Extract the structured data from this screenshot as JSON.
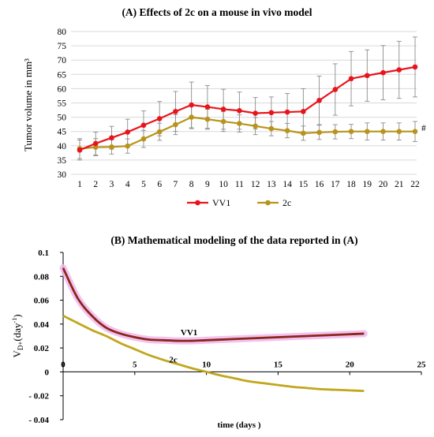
{
  "chart_data": [
    {
      "type": "line",
      "title": "(A) Effects of 2c on a mouse in vivo model",
      "ylabel": "Tumor volume in mm³",
      "xlabel": "",
      "x": [
        1,
        2,
        3,
        4,
        5,
        6,
        7,
        8,
        9,
        10,
        11,
        12,
        13,
        14,
        15,
        16,
        17,
        18,
        19,
        20,
        21,
        22
      ],
      "ylim": [
        30,
        80
      ],
      "yticks": [
        30,
        35,
        40,
        45,
        50,
        55,
        60,
        65,
        70,
        75,
        80
      ],
      "grid": "horizontal",
      "legend_position": "bottom",
      "annotation": "#",
      "series": [
        {
          "name": "VV1",
          "color": "#e8141c",
          "values": [
            38.5,
            40.8,
            42.8,
            44.8,
            47.2,
            49.5,
            52.0,
            54.3,
            53.6,
            52.8,
            52.3,
            51.4,
            51.6,
            51.8,
            52.0,
            55.9,
            59.7,
            63.5,
            64.6,
            65.6,
            66.6,
            67.6
          ],
          "error": [
            3.5,
            4.0,
            4.0,
            4.5,
            5.0,
            6.0,
            7.0,
            8.0,
            7.5,
            7.0,
            6.5,
            5.5,
            5.5,
            6.5,
            8.0,
            8.5,
            9.0,
            9.5,
            9.0,
            9.5,
            10.0,
            10.5
          ]
        },
        {
          "name": "2c",
          "color": "#b8941c",
          "values": [
            39.0,
            39.5,
            39.6,
            39.9,
            42.4,
            44.9,
            47.4,
            50.0,
            49.3,
            48.5,
            47.8,
            46.9,
            46.0,
            45.3,
            44.4,
            44.7,
            44.9,
            45.0,
            45.0,
            45.0,
            45.0,
            45.0
          ],
          "error": [
            3.5,
            3.0,
            2.5,
            2.5,
            3.0,
            3.0,
            3.5,
            4.0,
            3.5,
            3.5,
            3.0,
            3.0,
            2.5,
            2.5,
            2.5,
            2.5,
            2.5,
            2.5,
            3.0,
            3.0,
            3.0,
            3.5
          ]
        }
      ]
    },
    {
      "type": "line",
      "title": "(B) Mathematical modeling of the data  reported in (A)",
      "xlabel": "time (days )",
      "ylabel": "V",
      "ylabel_sub": "D+",
      "ylabel_rest": "(day",
      "ylabel_sup": "-1",
      "ylabel_end": ")",
      "xlim": [
        0,
        25
      ],
      "ylim": [
        -0.04,
        0.1
      ],
      "xticks": [
        0,
        5,
        10,
        15,
        20,
        25
      ],
      "yticks": [
        -0.04,
        -0.02,
        0,
        0.02,
        0.04,
        0.06,
        0.08,
        0.1
      ],
      "ytick_labels": [
        "- 0.04",
        "- 0.02",
        "0",
        "0.02",
        "0.04",
        "0.06",
        "0.08",
        "0.1"
      ],
      "grid": "none",
      "series": [
        {
          "name": "VV1",
          "color": "#8b2618",
          "band_color": "#f0b8ee",
          "x": [
            0,
            1,
            2,
            3,
            4,
            5,
            6,
            7,
            8,
            9,
            10,
            11,
            12,
            13,
            14,
            15,
            16,
            17,
            18,
            19,
            20,
            21
          ],
          "y": [
            0.087,
            0.062,
            0.047,
            0.037,
            0.032,
            0.029,
            0.027,
            0.0265,
            0.026,
            0.026,
            0.0265,
            0.027,
            0.0275,
            0.028,
            0.0285,
            0.029,
            0.0295,
            0.03,
            0.0305,
            0.031,
            0.0315,
            0.032
          ]
        },
        {
          "name": "2c",
          "color": "#c2a61c",
          "x": [
            0,
            1,
            2,
            3,
            4,
            5,
            6,
            7,
            8,
            9,
            10,
            11,
            12,
            13,
            14,
            15,
            16,
            17,
            18,
            19,
            20,
            21
          ],
          "y": [
            0.047,
            0.041,
            0.035,
            0.03,
            0.024,
            0.019,
            0.014,
            0.01,
            0.0065,
            0.003,
            0.0,
            -0.003,
            -0.0055,
            -0.008,
            -0.0095,
            -0.011,
            -0.0125,
            -0.0135,
            -0.0145,
            -0.015,
            -0.0155,
            -0.016
          ]
        }
      ]
    }
  ]
}
